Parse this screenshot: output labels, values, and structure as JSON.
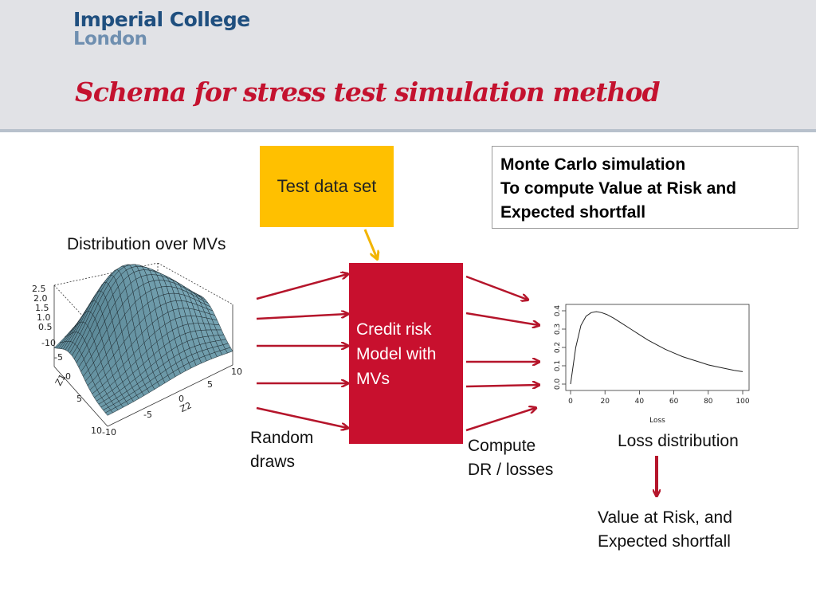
{
  "header": {
    "logo_line1": "Imperial College",
    "logo_line2": "London",
    "title": "Schema for stress test simulation method"
  },
  "boxes": {
    "test_data": "Test data set",
    "monte_carlo": [
      "Monte Carlo simulation",
      "To compute Value at Risk and",
      "Expected shortfall"
    ],
    "model": [
      "Credit risk",
      "Model with",
      "MVs"
    ]
  },
  "labels": {
    "distribution": "Distribution over MVs",
    "random_draws": [
      "Random",
      "draws"
    ],
    "compute": [
      "Compute",
      "DR / losses"
    ],
    "loss_distribution": "Loss distribution",
    "var_es": [
      "Value at Risk, and",
      "Expected shortfall"
    ]
  },
  "colors": {
    "accent_red": "#c8102e",
    "arrow_red": "#b5152b",
    "test_box": "#ffc000"
  },
  "surface_plot": {
    "z_ticks": [
      "2.5",
      "2.0",
      "1.5",
      "1.0",
      "0.5"
    ],
    "z1_ticks": [
      "-10",
      "-5",
      "0",
      "5",
      "10"
    ],
    "z2_ticks": [
      "-10",
      "-5",
      "0",
      "5",
      "10"
    ],
    "z1_label": "Z1",
    "z2_label": "Z2"
  },
  "chart_data": {
    "type": "line",
    "xlabel": "Loss",
    "ylabel": "",
    "xlim": [
      0,
      100
    ],
    "ylim": [
      0,
      0.4
    ],
    "x_ticks": [
      "0",
      "20",
      "40",
      "60",
      "80",
      "100"
    ],
    "y_ticks": [
      "0.0",
      "0.1",
      "0.2",
      "0.3",
      "0.4"
    ],
    "series": [
      {
        "x": [
          0,
          3,
          6,
          9,
          12,
          15,
          18,
          21,
          25,
          30,
          35,
          40,
          45,
          50,
          55,
          60,
          65,
          70,
          75,
          80,
          85,
          90,
          95,
          100
        ],
        "y": [
          0.0,
          0.2,
          0.32,
          0.37,
          0.39,
          0.395,
          0.39,
          0.38,
          0.36,
          0.33,
          0.3,
          0.27,
          0.24,
          0.215,
          0.19,
          0.17,
          0.15,
          0.135,
          0.12,
          0.105,
          0.095,
          0.085,
          0.075,
          0.068
        ]
      }
    ]
  }
}
